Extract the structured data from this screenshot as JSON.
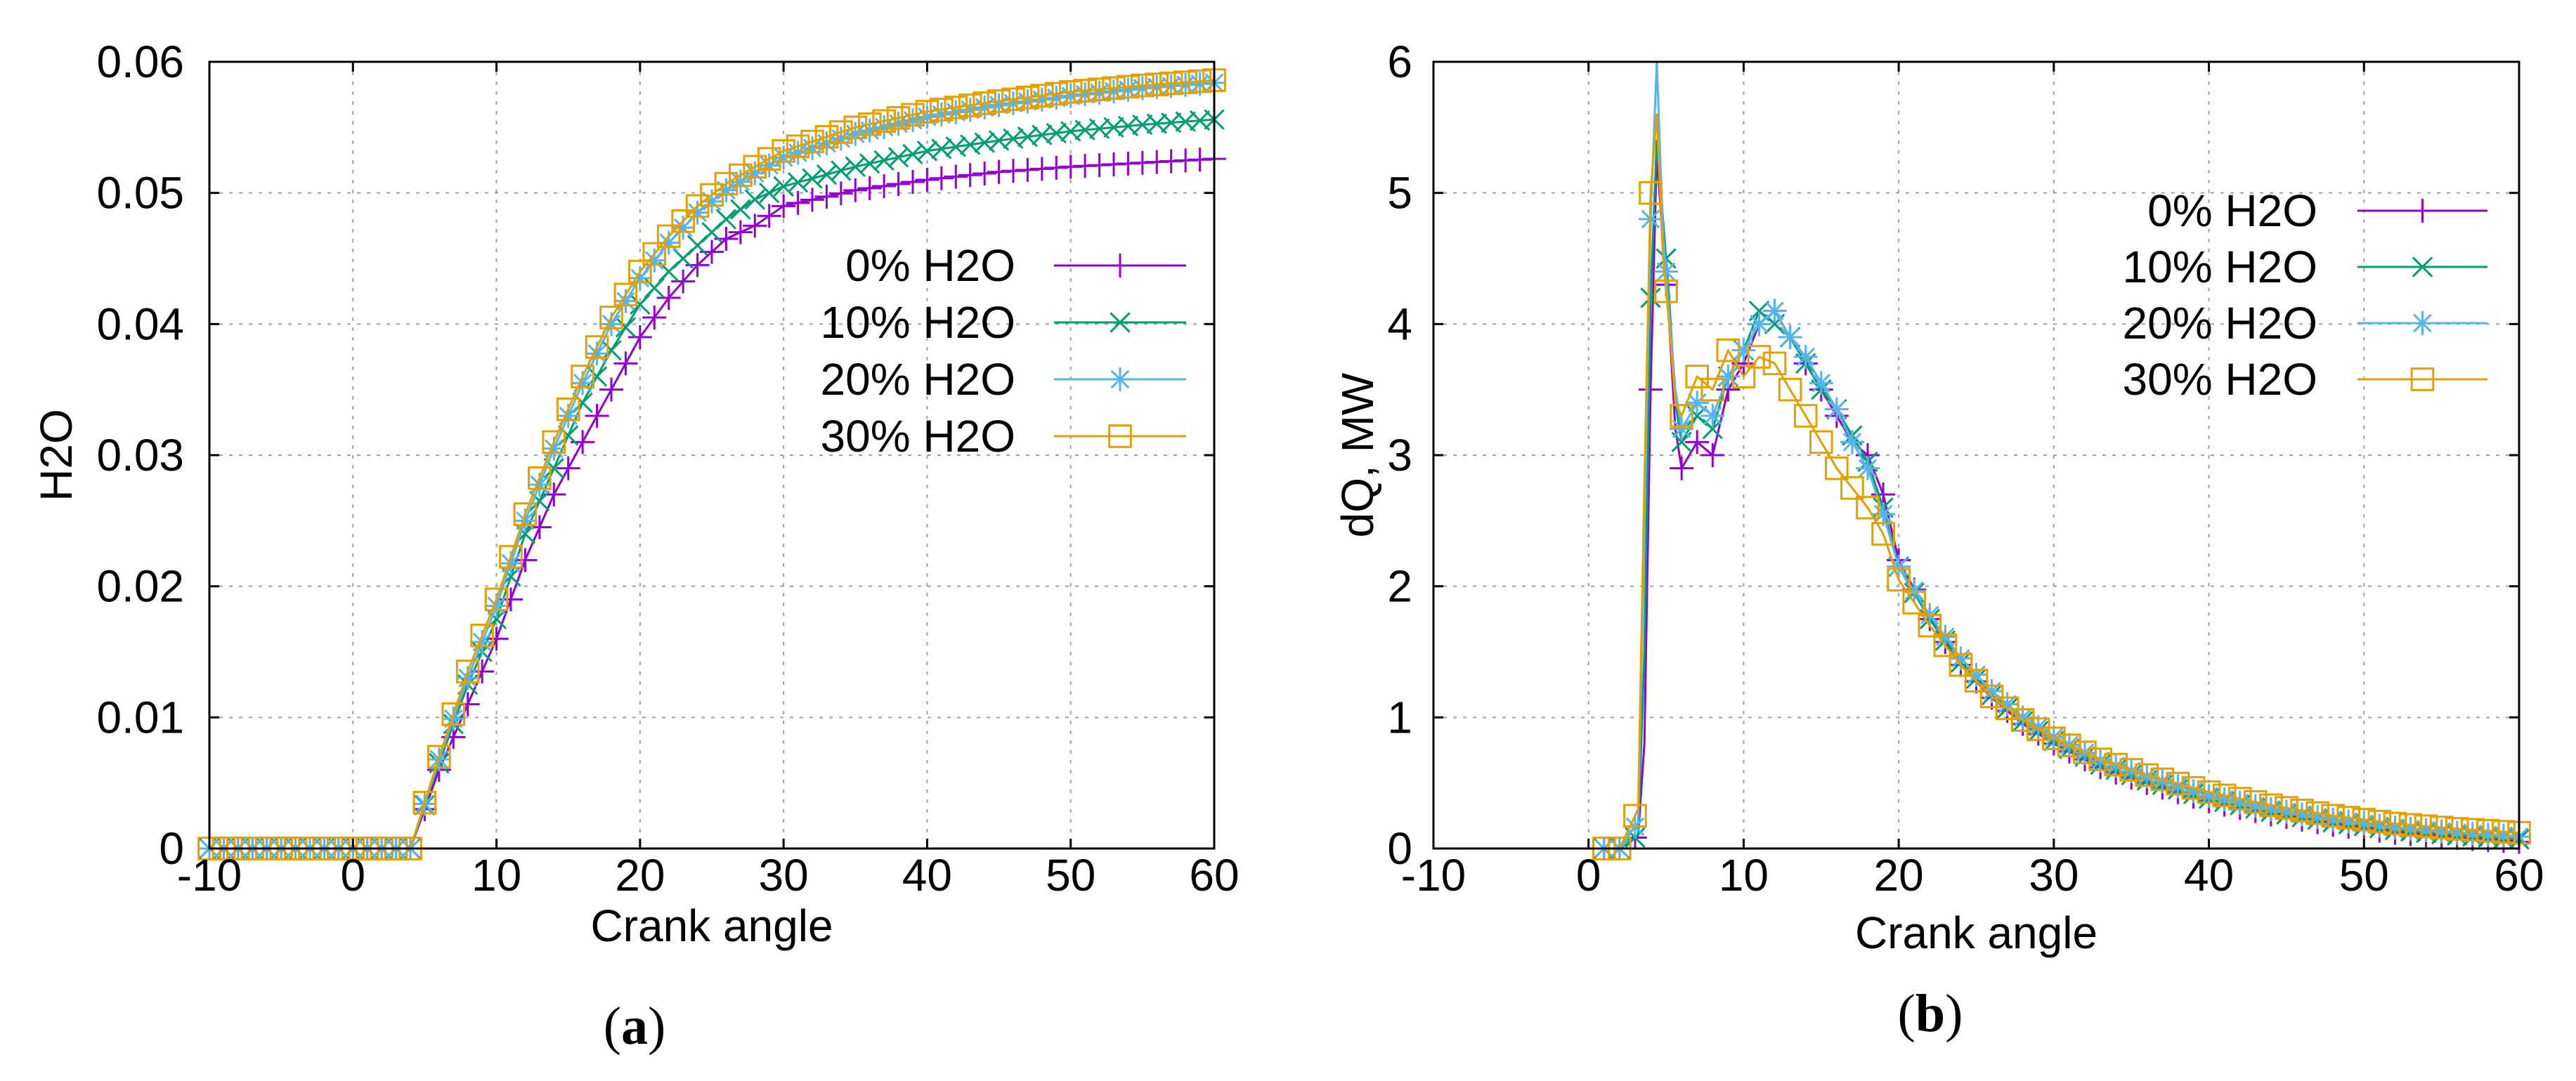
{
  "chart_data": [
    {
      "panel": "(a)",
      "type": "line",
      "xlabel": "Crank angle",
      "ylabel": "H2O",
      "xlim": [
        -10,
        60
      ],
      "ylim": [
        0,
        0.06
      ],
      "xticks": [
        -10,
        0,
        10,
        20,
        30,
        40,
        50,
        60
      ],
      "xtick_labels": [
        "-10",
        "0",
        "10",
        "20",
        "30",
        "40",
        "50",
        "60"
      ],
      "yticks": [
        0,
        0.01,
        0.02,
        0.03,
        0.04,
        0.05,
        0.06
      ],
      "ytick_labels": [
        "0",
        "0.01",
        "0.02",
        "0.03",
        "0.04",
        "0.05",
        "0.06"
      ],
      "grid": true,
      "legend_position": "right",
      "series": [
        {
          "name": "0% H2O",
          "label": "0% H2O",
          "color": "#9400d3",
          "marker": "plus",
          "x": [
            -10,
            0,
            4,
            5,
            6,
            8,
            10,
            12,
            14,
            16,
            18,
            20,
            22,
            24,
            26,
            28,
            30,
            35,
            40,
            45,
            50,
            55,
            60
          ],
          "y": [
            0,
            0,
            0,
            0.003,
            0.006,
            0.011,
            0.016,
            0.022,
            0.027,
            0.031,
            0.035,
            0.039,
            0.042,
            0.0445,
            0.0465,
            0.0475,
            0.049,
            0.0502,
            0.051,
            0.0516,
            0.052,
            0.0523,
            0.0526
          ]
        },
        {
          "name": "10% H2O",
          "label": "10% H2O",
          "color": "#009e73",
          "marker": "cross",
          "x": [
            -10,
            0,
            4,
            5,
            6,
            8,
            10,
            12,
            14,
            16,
            18,
            20,
            22,
            24,
            26,
            28,
            30,
            35,
            40,
            45,
            50,
            55,
            60
          ],
          "y": [
            0,
            0,
            0,
            0.0033,
            0.0065,
            0.0125,
            0.0175,
            0.024,
            0.029,
            0.034,
            0.038,
            0.0415,
            0.044,
            0.046,
            0.048,
            0.0495,
            0.0505,
            0.052,
            0.0532,
            0.054,
            0.0547,
            0.0552,
            0.0556
          ]
        },
        {
          "name": "20% H2O",
          "label": "20% H2O",
          "color": "#56b4e9",
          "marker": "star",
          "x": [
            -10,
            0,
            4,
            5,
            6,
            8,
            10,
            12,
            14,
            16,
            18,
            20,
            22,
            24,
            26,
            28,
            30,
            35,
            40,
            45,
            50,
            55,
            60
          ],
          "y": [
            0,
            0,
            0,
            0.0034,
            0.0068,
            0.013,
            0.0185,
            0.025,
            0.0305,
            0.0355,
            0.04,
            0.0435,
            0.0462,
            0.0485,
            0.0502,
            0.0515,
            0.0527,
            0.0545,
            0.0558,
            0.0567,
            0.0574,
            0.058,
            0.0584
          ]
        },
        {
          "name": "30% H2O",
          "label": "30% H2O",
          "color": "#e69f00",
          "marker": "square",
          "x": [
            -10,
            0,
            4,
            5,
            6,
            8,
            10,
            12,
            14,
            16,
            18,
            20,
            22,
            24,
            26,
            28,
            30,
            35,
            40,
            45,
            50,
            55,
            60
          ],
          "y": [
            0,
            0,
            0,
            0.0035,
            0.007,
            0.0135,
            0.019,
            0.0255,
            0.031,
            0.036,
            0.0405,
            0.044,
            0.0467,
            0.049,
            0.0507,
            0.052,
            0.0532,
            0.055,
            0.0562,
            0.057,
            0.0577,
            0.0582,
            0.0586
          ]
        }
      ]
    },
    {
      "panel": "(b)",
      "type": "line",
      "xlabel": "Crank angle",
      "ylabel": "dQ, MW",
      "xlim": [
        -10,
        60
      ],
      "ylim": [
        0,
        6
      ],
      "xticks": [
        -10,
        0,
        10,
        20,
        30,
        40,
        50,
        60
      ],
      "xtick_labels": [
        "-10",
        "0",
        "10",
        "20",
        "30",
        "40",
        "50",
        "60"
      ],
      "yticks": [
        0,
        1,
        2,
        3,
        4,
        5,
        6
      ],
      "ytick_labels": [
        "0",
        "1",
        "2",
        "3",
        "4",
        "5",
        "6"
      ],
      "grid": true,
      "legend_position": "top-right",
      "series": [
        {
          "name": "0% H2O",
          "label": "0% H2O",
          "color": "#9400d3",
          "marker": "plus",
          "x": [
            0.5,
            2,
            3.2,
            3.6,
            4.0,
            4.4,
            4.8,
            5.2,
            5.6,
            6,
            7,
            8,
            9,
            10,
            11,
            12,
            13,
            14,
            15,
            16,
            17,
            18,
            19,
            20,
            22,
            24,
            26,
            28,
            30,
            33,
            36,
            40,
            44,
            48,
            52,
            56,
            60
          ],
          "y": [
            0,
            0,
            0.1,
            0.8,
            3.5,
            5.3,
            4.6,
            4.0,
            3.2,
            2.9,
            3.1,
            3.0,
            3.5,
            3.7,
            4.0,
            4.1,
            3.9,
            3.7,
            3.5,
            3.3,
            3.1,
            3.0,
            2.7,
            2.2,
            1.75,
            1.4,
            1.15,
            0.95,
            0.8,
            0.62,
            0.5,
            0.36,
            0.26,
            0.18,
            0.12,
            0.08,
            0.05
          ]
        },
        {
          "name": "10% H2O",
          "label": "10% H2O",
          "color": "#009e73",
          "marker": "cross",
          "x": [
            0.5,
            2,
            3.2,
            3.6,
            4.0,
            4.4,
            4.8,
            5.2,
            5.6,
            6,
            7,
            8,
            9,
            10,
            11,
            12,
            13,
            14,
            15,
            16,
            17,
            18,
            19,
            20,
            22,
            24,
            26,
            28,
            30,
            33,
            36,
            40,
            44,
            48,
            52,
            56,
            60
          ],
          "y": [
            0,
            0,
            0.1,
            1.5,
            4.2,
            5.4,
            4.8,
            4.2,
            3.4,
            3.1,
            3.3,
            3.2,
            3.6,
            3.8,
            4.1,
            4.0,
            3.9,
            3.7,
            3.5,
            3.35,
            3.15,
            2.95,
            2.6,
            2.15,
            1.75,
            1.42,
            1.17,
            0.97,
            0.82,
            0.64,
            0.52,
            0.38,
            0.28,
            0.2,
            0.14,
            0.1,
            0.07
          ]
        },
        {
          "name": "20% H2O",
          "label": "20% H2O",
          "color": "#56b4e9",
          "marker": "star",
          "x": [
            0.5,
            2,
            3.2,
            3.6,
            4.0,
            4.4,
            4.8,
            5.2,
            5.6,
            6,
            7,
            8,
            9,
            10,
            11,
            12,
            13,
            14,
            15,
            16,
            17,
            18,
            19,
            20,
            22,
            24,
            26,
            28,
            30,
            33,
            36,
            40,
            44,
            48,
            52,
            56,
            60
          ],
          "y": [
            0,
            0,
            0.2,
            2.4,
            4.8,
            6.0,
            4.7,
            4.1,
            3.5,
            3.2,
            3.4,
            3.3,
            3.6,
            3.8,
            4.0,
            4.1,
            3.9,
            3.75,
            3.55,
            3.35,
            3.1,
            2.9,
            2.55,
            2.15,
            1.78,
            1.45,
            1.2,
            1.0,
            0.85,
            0.67,
            0.55,
            0.4,
            0.3,
            0.22,
            0.16,
            0.12,
            0.09
          ]
        },
        {
          "name": "30% H2O",
          "label": "30% H2O",
          "color": "#e69f00",
          "marker": "square",
          "x": [
            0.5,
            2,
            3.2,
            3.6,
            4.0,
            4.4,
            4.8,
            5.2,
            5.6,
            6,
            7,
            8,
            9,
            10,
            11,
            12,
            13,
            14,
            15,
            16,
            17,
            18,
            19,
            20,
            22,
            24,
            26,
            28,
            30,
            33,
            36,
            40,
            44,
            48,
            52,
            56,
            60
          ],
          "y": [
            0,
            0,
            0.3,
            2.8,
            5.0,
            5.6,
            4.5,
            4.0,
            3.4,
            3.3,
            3.6,
            3.5,
            3.8,
            3.6,
            3.75,
            3.7,
            3.5,
            3.3,
            3.1,
            2.9,
            2.75,
            2.6,
            2.4,
            2.05,
            1.7,
            1.4,
            1.16,
            0.98,
            0.84,
            0.68,
            0.56,
            0.43,
            0.33,
            0.25,
            0.19,
            0.15,
            0.12
          ]
        }
      ]
    }
  ]
}
